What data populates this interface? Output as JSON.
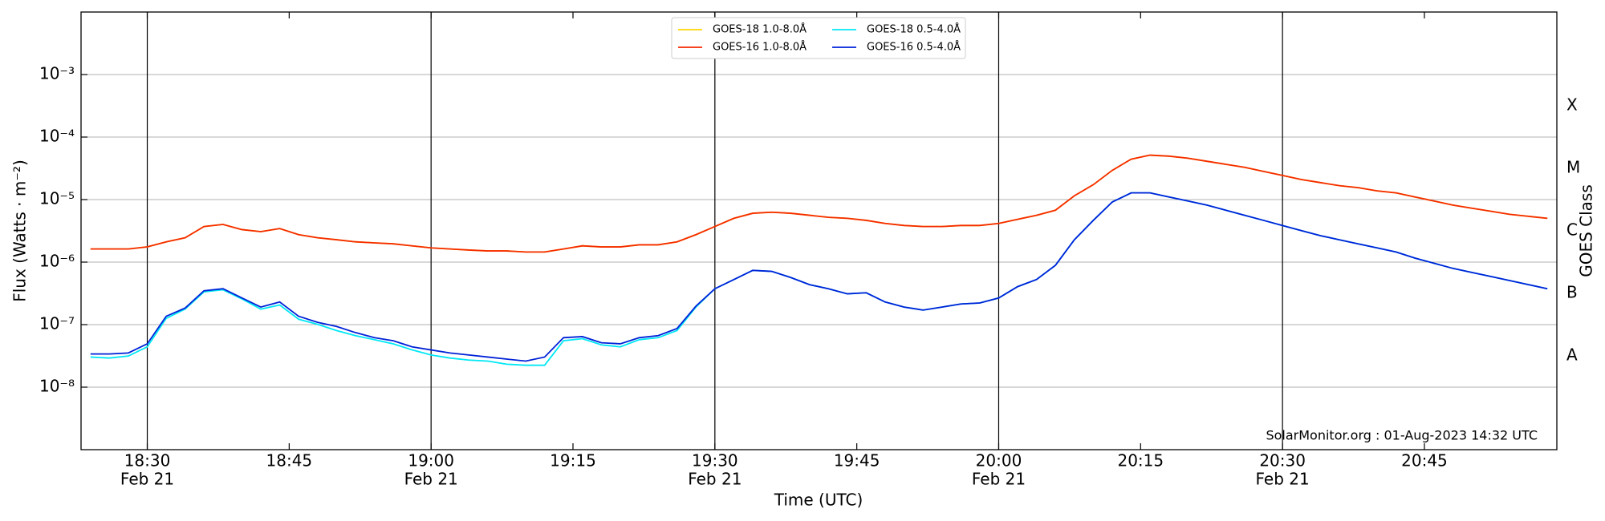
{
  "chart_data": {
    "type": "line",
    "xlabel": "Time (UTC)",
    "ylabel": "Flux (Watts · m⁻²)",
    "y2label": "GOES Class",
    "annotation": "SolarMonitor.org : 01-Aug-2023 14:32 UTC",
    "log_y": true,
    "grid": true,
    "legend": "upper center",
    "x": [
      "18:24",
      "18:26",
      "18:28",
      "18:30",
      "18:32",
      "18:34",
      "18:36",
      "18:38",
      "18:40",
      "18:42",
      "18:44",
      "18:46",
      "18:48",
      "18:50",
      "18:52",
      "18:54",
      "18:56",
      "18:58",
      "19:00",
      "19:02",
      "19:04",
      "19:06",
      "19:08",
      "19:10",
      "19:12",
      "19:14",
      "19:16",
      "19:18",
      "19:20",
      "19:22",
      "19:24",
      "19:26",
      "19:28",
      "19:30",
      "19:32",
      "19:34",
      "19:36",
      "19:38",
      "19:40",
      "19:42",
      "19:44",
      "19:46",
      "19:48",
      "19:50",
      "19:52",
      "19:54",
      "19:56",
      "19:58",
      "20:00",
      "20:02",
      "20:04",
      "20:06",
      "20:08",
      "20:10",
      "20:12",
      "20:14",
      "20:16",
      "20:18",
      "20:20",
      "20:22",
      "20:24",
      "20:26",
      "20:28",
      "20:30",
      "20:32",
      "20:34",
      "20:36",
      "20:38",
      "20:40",
      "20:42",
      "20:44",
      "20:46",
      "20:48",
      "20:50",
      "20:52",
      "20:54",
      "20:56",
      "20:58"
    ],
    "xlim": [
      "18:23",
      "20:59"
    ],
    "xticks": [
      "18:30",
      "18:45",
      "19:00",
      "19:15",
      "19:30",
      "19:45",
      "20:00",
      "20:15",
      "20:30",
      "20:45"
    ],
    "xtick_dates": [
      "Feb 21",
      null,
      "Feb 21",
      null,
      "Feb 21",
      null,
      "Feb 21",
      null,
      "Feb 21",
      null
    ],
    "ylim": [
      1e-09,
      0.01
    ],
    "yticks": [
      {
        "value": 1e-08,
        "label": "10⁻⁸"
      },
      {
        "value": 1e-07,
        "label": "10⁻⁷"
      },
      {
        "value": 1e-06,
        "label": "10⁻⁶"
      },
      {
        "value": 1e-05,
        "label": "10⁻⁵"
      },
      {
        "value": 0.0001,
        "label": "10⁻⁴"
      },
      {
        "value": 0.001,
        "label": "10⁻³"
      }
    ],
    "y2lim": [
      1e-09,
      0.01
    ],
    "y2ticks": [
      {
        "value": 3.16e-08,
        "label": "A"
      },
      {
        "value": 3.16e-07,
        "label": "B"
      },
      {
        "value": 3.16e-06,
        "label": "C"
      },
      {
        "value": 3.16e-05,
        "label": "M"
      },
      {
        "value": 0.000316,
        "label": "X"
      }
    ],
    "series": [
      {
        "name": "GOES-18 1.0-8.0Å",
        "color": "#ffd400",
        "values": [
          1.62e-06,
          1.62e-06,
          1.62e-06,
          1.75e-06,
          2.11e-06,
          2.45e-06,
          3.71e-06,
          4e-06,
          3.31e-06,
          3.07e-06,
          3.44e-06,
          2.75e-06,
          2.45e-06,
          2.28e-06,
          2.11e-06,
          2.03e-06,
          1.96e-06,
          1.82e-06,
          1.69e-06,
          1.62e-06,
          1.56e-06,
          1.51e-06,
          1.51e-06,
          1.45e-06,
          1.45e-06,
          1.62e-06,
          1.82e-06,
          1.75e-06,
          1.75e-06,
          1.89e-06,
          1.89e-06,
          2.11e-06,
          2.75e-06,
          3.71e-06,
          5.01e-06,
          6.04e-06,
          6.28e-06,
          6.04e-06,
          5.61e-06,
          5.2e-06,
          5.01e-06,
          4.65e-06,
          4.15e-06,
          3.85e-06,
          3.71e-06,
          3.71e-06,
          3.85e-06,
          3.85e-06,
          4.15e-06,
          4.83e-06,
          5.61e-06,
          6.76e-06,
          1.15e-05,
          1.73e-05,
          2.93e-05,
          4.43e-05,
          5.14e-05,
          4.95e-05,
          4.59e-05,
          4.1e-05,
          3.67e-05,
          3.28e-05,
          2.82e-05,
          2.43e-05,
          2.09e-05,
          1.87e-05,
          1.67e-05,
          1.55e-05,
          1.38e-05,
          1.28e-05,
          1.1e-05,
          9.5e-06,
          8.17e-06,
          7.29e-06,
          6.52e-06,
          5.82e-06,
          5.4e-06,
          5.01e-06
        ]
      },
      {
        "name": "GOES-16 1.0-8.0Å",
        "color": "#f52a00",
        "values": [
          1.62e-06,
          1.62e-06,
          1.62e-06,
          1.75e-06,
          2.11e-06,
          2.45e-06,
          3.71e-06,
          4e-06,
          3.31e-06,
          3.07e-06,
          3.44e-06,
          2.75e-06,
          2.45e-06,
          2.28e-06,
          2.11e-06,
          2.03e-06,
          1.96e-06,
          1.82e-06,
          1.69e-06,
          1.62e-06,
          1.56e-06,
          1.51e-06,
          1.51e-06,
          1.45e-06,
          1.45e-06,
          1.62e-06,
          1.82e-06,
          1.75e-06,
          1.75e-06,
          1.89e-06,
          1.89e-06,
          2.11e-06,
          2.75e-06,
          3.71e-06,
          5.01e-06,
          6.04e-06,
          6.28e-06,
          6.04e-06,
          5.61e-06,
          5.2e-06,
          5.01e-06,
          4.65e-06,
          4.15e-06,
          3.85e-06,
          3.71e-06,
          3.71e-06,
          3.85e-06,
          3.85e-06,
          4.15e-06,
          4.83e-06,
          5.61e-06,
          6.76e-06,
          1.15e-05,
          1.73e-05,
          2.93e-05,
          4.43e-05,
          5.14e-05,
          4.95e-05,
          4.59e-05,
          4.1e-05,
          3.67e-05,
          3.28e-05,
          2.82e-05,
          2.43e-05,
          2.09e-05,
          1.87e-05,
          1.67e-05,
          1.55e-05,
          1.38e-05,
          1.28e-05,
          1.1e-05,
          9.5e-06,
          8.17e-06,
          7.29e-06,
          6.52e-06,
          5.82e-06,
          5.4e-06,
          5.01e-06
        ]
      },
      {
        "name": "GOES-18 0.5-4.0Å",
        "color": "#00e8f5",
        "values": [
          3.03e-08,
          2.92e-08,
          3.15e-08,
          4.41e-08,
          1.26e-07,
          1.77e-07,
          3.35e-07,
          3.61e-07,
          2.58e-07,
          1.77e-07,
          2.06e-07,
          1.22e-07,
          1.01e-07,
          8.05e-08,
          6.67e-08,
          5.74e-08,
          4.93e-08,
          3.94e-08,
          3.27e-08,
          2.92e-08,
          2.71e-08,
          2.61e-08,
          2.33e-08,
          2.24e-08,
          2.24e-08,
          5.52e-08,
          5.96e-08,
          4.75e-08,
          4.41e-08,
          5.74e-08,
          6.18e-08,
          8.05e-08,
          1.91e-07,
          3.75e-07,
          5.26e-07,
          7.38e-07,
          7.11e-07,
          5.68e-07,
          4.36e-07,
          3.75e-07,
          3.11e-07,
          3.23e-07,
          2.3e-07,
          1.91e-07,
          1.71e-07,
          1.91e-07,
          2.14e-07,
          2.22e-07,
          2.67e-07,
          4.05e-07,
          5.26e-07,
          8.9e-07,
          2.28e-06,
          4.65e-06,
          9.14e-06,
          1.28e-05,
          1.28e-05,
          1.1e-05,
          9.5e-06,
          8.17e-06,
          6.76e-06,
          5.61e-06,
          4.65e-06,
          3.85e-06,
          3.19e-06,
          2.65e-06,
          2.28e-06,
          1.96e-06,
          1.69e-06,
          1.45e-06,
          1.16e-06,
          9.6e-07,
          7.94e-07,
          6.84e-07,
          5.89e-07,
          5.07e-07,
          4.36e-07,
          3.75e-07
        ]
      },
      {
        "name": "GOES-16 0.5-4.0Å",
        "color": "#0022d8",
        "values": [
          3.39e-08,
          3.39e-08,
          3.52e-08,
          4.93e-08,
          1.36e-07,
          1.84e-07,
          3.48e-07,
          3.75e-07,
          2.67e-07,
          1.91e-07,
          2.3e-07,
          1.36e-07,
          1.09e-07,
          9.35e-08,
          7.46e-08,
          6.18e-08,
          5.52e-08,
          4.41e-08,
          3.94e-08,
          3.52e-08,
          3.27e-08,
          3.03e-08,
          2.81e-08,
          2.61e-08,
          3.03e-08,
          6.18e-08,
          6.43e-08,
          5.13e-08,
          4.93e-08,
          6.18e-08,
          6.67e-08,
          8.67e-08,
          1.98e-07,
          3.75e-07,
          5.26e-07,
          7.38e-07,
          7.11e-07,
          5.68e-07,
          4.36e-07,
          3.75e-07,
          3.11e-07,
          3.23e-07,
          2.3e-07,
          1.91e-07,
          1.71e-07,
          1.91e-07,
          2.14e-07,
          2.22e-07,
          2.67e-07,
          4.05e-07,
          5.26e-07,
          8.9e-07,
          2.28e-06,
          4.65e-06,
          9.14e-06,
          1.28e-05,
          1.28e-05,
          1.1e-05,
          9.5e-06,
          8.17e-06,
          6.76e-06,
          5.61e-06,
          4.65e-06,
          3.85e-06,
          3.19e-06,
          2.65e-06,
          2.28e-06,
          1.96e-06,
          1.69e-06,
          1.45e-06,
          1.16e-06,
          9.6e-07,
          7.94e-07,
          6.84e-07,
          5.89e-07,
          5.07e-07,
          4.36e-07,
          3.75e-07
        ]
      }
    ]
  }
}
